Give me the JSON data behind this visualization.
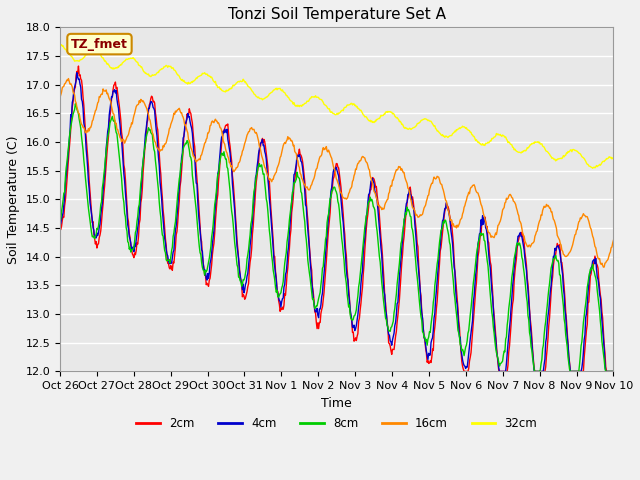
{
  "title": "Tonzi Soil Temperature Set A",
  "xlabel": "Time",
  "ylabel": "Soil Temperature (C)",
  "ylim": [
    12.0,
    18.0
  ],
  "yticks": [
    12.0,
    12.5,
    13.0,
    13.5,
    14.0,
    14.5,
    15.0,
    15.5,
    16.0,
    16.5,
    17.0,
    17.5,
    18.0
  ],
  "xtick_labels": [
    "Oct 26",
    "Oct 27",
    "Oct 28",
    "Oct 29",
    "Oct 30",
    "Oct 31",
    "Nov 1",
    "Nov 2",
    "Nov 3",
    "Nov 4",
    "Nov 5",
    "Nov 6",
    "Nov 7",
    "Nov 8",
    "Nov 9",
    "Nov 10"
  ],
  "plot_bg_color": "#e8e8e8",
  "fig_bg_color": "#f0f0f0",
  "legend_label": "TZ_fmet",
  "legend_bg": "#ffffcc",
  "legend_border": "#cc8800",
  "series_colors": [
    "#ff0000",
    "#0000cc",
    "#00cc00",
    "#ff8800",
    "#ffff00"
  ],
  "series_labels": [
    "2cm",
    "4cm",
    "8cm",
    "16cm",
    "32cm"
  ],
  "title_fontsize": 11,
  "axis_label_fontsize": 9,
  "tick_fontsize": 8
}
